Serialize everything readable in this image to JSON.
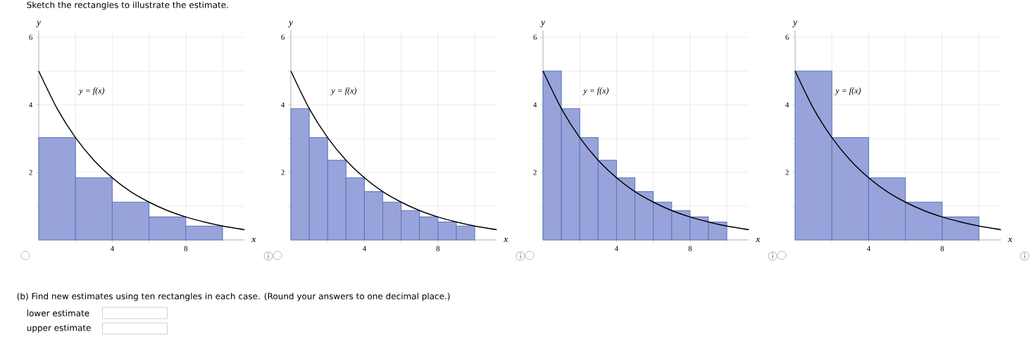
{
  "chart_data": [
    {
      "type": "histogram",
      "title": "Sketch the rectangles to illustrate the estimate.",
      "xlabel": "x",
      "ylabel": "y",
      "bins": [
        0,
        2,
        4,
        6,
        8,
        10
      ],
      "values": [
        3.03,
        1.84,
        1.12,
        0.68,
        0.41
      ],
      "color": "#99a3db",
      "series": [
        {
          "type": "line",
          "color": "#000000",
          "x": [
            0,
            1,
            2,
            3,
            4,
            5,
            6,
            7,
            8,
            9,
            10,
            11.2
          ],
          "values": [
            5,
            3.89,
            3.03,
            2.36,
            1.84,
            1.43,
            1.12,
            0.87,
            0.68,
            0.53,
            0.41,
            0.3
          ]
        }
      ],
      "xlim": [
        0,
        11.2
      ],
      "ylim": [
        0,
        6.2
      ],
      "xticks": [
        {
          "value": 2,
          "label": null
        },
        4,
        {
          "value": 6,
          "label": null
        },
        8,
        {
          "value": 10,
          "label": null
        }
      ],
      "yticks": [
        {
          "value": 1,
          "label": null
        },
        2,
        {
          "value": 3,
          "label": null
        },
        4,
        {
          "value": 5,
          "label": null
        },
        6
      ],
      "grid": true,
      "annotations": [
        "y = f(x)",
        "(b) Find new estimates using ten rectangles in each case. (Round your answers to one decimal place.)",
        "lower estimate",
        "upper estimate"
      ]
    },
    {
      "type": "histogram",
      "xlabel": "x",
      "ylabel": "y",
      "bins": [
        0,
        1,
        2,
        3,
        4,
        5,
        6,
        7,
        8,
        9,
        10
      ],
      "values": [
        3.89,
        3.03,
        2.36,
        1.84,
        1.43,
        1.12,
        0.87,
        0.68,
        0.53,
        0.41
      ],
      "color": "#99a3db",
      "series": [
        {
          "type": "line",
          "color": "#000000",
          "x": [
            0,
            1,
            2,
            3,
            4,
            5,
            6,
            7,
            8,
            9,
            10,
            11.2
          ],
          "values": [
            5,
            3.89,
            3.03,
            2.36,
            1.84,
            1.43,
            1.12,
            0.87,
            0.68,
            0.53,
            0.41,
            0.3
          ]
        }
      ],
      "xlim": [
        0,
        11.2
      ],
      "ylim": [
        0,
        6.2
      ],
      "xticks": [
        {
          "value": 2,
          "label": null
        },
        4,
        {
          "value": 6,
          "label": null
        },
        8,
        {
          "value": 10,
          "label": null
        }
      ],
      "yticks": [
        {
          "value": 1,
          "label": null
        },
        2,
        {
          "value": 3,
          "label": null
        },
        4,
        {
          "value": 5,
          "label": null
        },
        6
      ],
      "grid": true,
      "annotations": [
        "y = f(x)"
      ]
    },
    {
      "type": "histogram",
      "xlabel": "x",
      "ylabel": "y",
      "bins": [
        0,
        1,
        2,
        3,
        4,
        5,
        6,
        7,
        8,
        9,
        10
      ],
      "values": [
        5,
        3.89,
        3.03,
        2.36,
        1.84,
        1.43,
        1.12,
        0.87,
        0.68,
        0.53
      ],
      "color": "#99a3db",
      "series": [
        {
          "type": "line",
          "color": "#000000",
          "x": [
            0,
            1,
            2,
            3,
            4,
            5,
            6,
            7,
            8,
            9,
            10,
            11.2
          ],
          "values": [
            5,
            3.89,
            3.03,
            2.36,
            1.84,
            1.43,
            1.12,
            0.87,
            0.68,
            0.53,
            0.41,
            0.3
          ]
        }
      ],
      "xlim": [
        0,
        11.2
      ],
      "ylim": [
        0,
        6.2
      ],
      "xticks": [
        {
          "value": 2,
          "label": null
        },
        4,
        {
          "value": 6,
          "label": null
        },
        8,
        {
          "value": 10,
          "label": null
        }
      ],
      "yticks": [
        {
          "value": 1,
          "label": null
        },
        2,
        {
          "value": 3,
          "label": null
        },
        4,
        {
          "value": 5,
          "label": null
        },
        6
      ],
      "grid": true,
      "annotations": [
        "y = f(x)"
      ]
    },
    {
      "type": "histogram",
      "xlabel": "x",
      "ylabel": "y",
      "bins": [
        0,
        2,
        4,
        6,
        8,
        10
      ],
      "values": [
        5,
        3.03,
        1.84,
        1.12,
        0.68
      ],
      "color": "#99a3db",
      "series": [
        {
          "type": "line",
          "color": "#000000",
          "x": [
            0,
            1,
            2,
            3,
            4,
            5,
            6,
            7,
            8,
            9,
            10,
            11.2
          ],
          "values": [
            5,
            3.89,
            3.03,
            2.36,
            1.84,
            1.43,
            1.12,
            0.87,
            0.68,
            0.53,
            0.41,
            0.3
          ]
        }
      ],
      "xlim": [
        0,
        11.2
      ],
      "ylim": [
        0,
        6.2
      ],
      "xticks": [
        {
          "value": 2,
          "label": null
        },
        4,
        {
          "value": 6,
          "label": null
        },
        8,
        {
          "value": 10,
          "label": null
        }
      ],
      "yticks": [
        {
          "value": 1,
          "label": null
        },
        2,
        {
          "value": 3,
          "label": null
        },
        4,
        {
          "value": 5,
          "label": null
        },
        6
      ],
      "grid": true,
      "annotations": [
        "y = f(x)"
      ]
    }
  ]
}
